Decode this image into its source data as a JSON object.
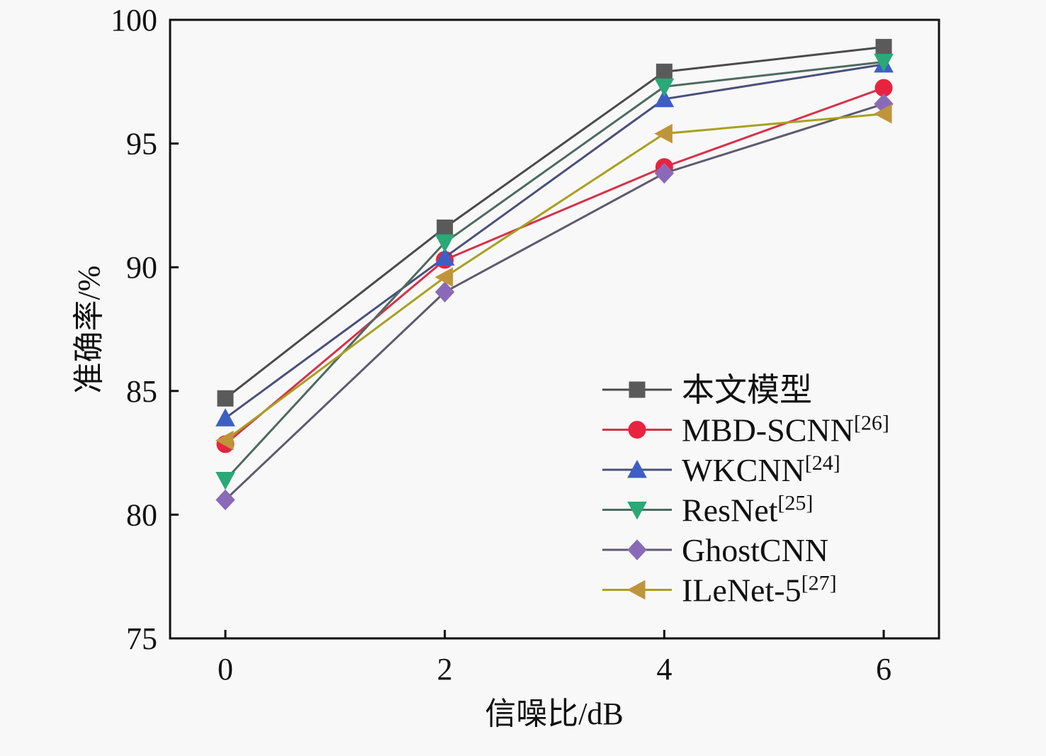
{
  "chart_data": {
    "type": "line",
    "title": "",
    "xlabel": "信噪比/dB",
    "ylabel": "准确率/%",
    "x": [
      0,
      2,
      4,
      6
    ],
    "xticks": [
      "0",
      "2",
      "4",
      "6"
    ],
    "xlim": [
      -0.5,
      6.5
    ],
    "ylim": [
      75,
      100
    ],
    "yticks": [
      "75",
      "80",
      "85",
      "90",
      "95",
      "100"
    ],
    "grid": false,
    "legend_position": "bottom-right",
    "series": [
      {
        "name": "本文模型",
        "ref": "",
        "marker": "square",
        "color": "#5a5a5a",
        "line_color": "#4a4a4a",
        "values": [
          84.7,
          91.6,
          97.9,
          98.9
        ]
      },
      {
        "name": "MBD-SCNN",
        "ref": "[26]",
        "marker": "circle",
        "color": "#e8233f",
        "line_color": "#d8304a",
        "values": [
          82.85,
          90.3,
          94.05,
          97.25
        ]
      },
      {
        "name": "WKCNN",
        "ref": "[24]",
        "marker": "triangle-up",
        "color": "#3d5fc4",
        "line_color": "#4a4f7a",
        "values": [
          83.9,
          90.4,
          96.8,
          98.2
        ]
      },
      {
        "name": "ResNet",
        "ref": "[25]",
        "marker": "triangle-down",
        "color": "#2aa878",
        "line_color": "#4d6a60",
        "values": [
          81.4,
          91.0,
          97.3,
          98.3
        ]
      },
      {
        "name": "GhostCNN",
        "ref": "",
        "marker": "diamond",
        "color": "#8a6ab8",
        "line_color": "#5f5a6e",
        "values": [
          80.6,
          89.0,
          93.8,
          96.6
        ]
      },
      {
        "name": "ILeNet-5",
        "ref": "[27]",
        "marker": "triangle-left",
        "color": "#c0953a",
        "line_color": "#a8a020",
        "values": [
          83.0,
          89.6,
          95.4,
          96.2
        ]
      }
    ]
  }
}
